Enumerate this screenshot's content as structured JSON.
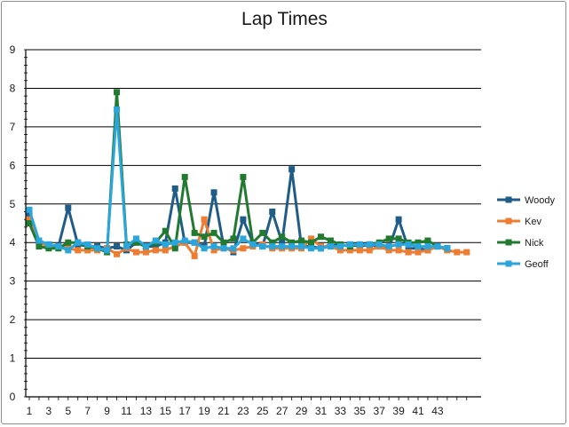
{
  "chart_data": {
    "type": "line",
    "title": "Lap Times",
    "xlabel": "",
    "ylabel": "",
    "ylim": [
      0,
      9
    ],
    "yticks": [
      0,
      1,
      2,
      3,
      4,
      5,
      6,
      7,
      8,
      9
    ],
    "x_tick_labels": [
      1,
      3,
      5,
      7,
      9,
      11,
      13,
      15,
      17,
      19,
      21,
      23,
      25,
      27,
      29,
      31,
      33,
      35,
      37,
      39,
      41,
      43
    ],
    "x_range": [
      1,
      46
    ],
    "grid": "horizontal major",
    "legend_position": "right",
    "series": [
      {
        "name": "Woody",
        "color": "#1F5C88",
        "values": [
          4.7,
          4.0,
          3.95,
          3.9,
          4.9,
          3.95,
          3.9,
          3.9,
          3.85,
          3.9,
          3.8,
          4.0,
          3.9,
          3.9,
          4.0,
          5.4,
          4.0,
          4.0,
          3.9,
          5.3,
          3.9,
          3.75,
          4.6,
          4.0,
          3.9,
          4.8,
          4.0,
          5.9,
          3.9,
          3.9,
          3.85,
          3.95,
          3.9,
          3.95,
          3.9,
          3.95,
          3.9,
          3.85,
          4.6,
          3.85,
          3.85,
          3.8,
          3.9,
          3.85
        ]
      },
      {
        "name": "Kev",
        "color": "#EE7D31",
        "values": [
          4.6,
          4.0,
          3.9,
          3.9,
          3.85,
          3.8,
          3.8,
          3.8,
          3.85,
          3.7,
          3.85,
          3.75,
          3.75,
          3.8,
          3.8,
          3.9,
          4.0,
          3.65,
          4.6,
          3.8,
          3.85,
          3.8,
          3.85,
          3.9,
          3.95,
          3.85,
          3.85,
          3.85,
          3.85,
          4.1,
          3.9,
          3.9,
          3.8,
          3.8,
          3.8,
          3.8,
          3.9,
          3.8,
          3.8,
          3.75,
          3.75,
          3.8,
          3.9,
          3.8,
          3.75,
          3.75
        ]
      },
      {
        "name": "Nick",
        "color": "#217A2F",
        "values": [
          4.5,
          3.9,
          3.85,
          3.85,
          4.0,
          4.0,
          3.9,
          3.85,
          3.75,
          7.9,
          3.95,
          4.0,
          3.9,
          4.0,
          4.3,
          3.85,
          5.7,
          4.25,
          4.15,
          4.25,
          4.0,
          4.1,
          5.7,
          4.0,
          4.25,
          4.0,
          4.15,
          4.0,
          4.05,
          4.0,
          4.15,
          4.05,
          3.95,
          3.9,
          3.95,
          3.95,
          4.0,
          4.1,
          4.1,
          4.0,
          4.0,
          4.05,
          3.9,
          3.85
        ]
      },
      {
        "name": "Geoff",
        "color": "#2AA6DD",
        "values": [
          4.85,
          4.05,
          3.95,
          3.9,
          3.8,
          4.0,
          3.95,
          3.85,
          3.8,
          7.45,
          3.9,
          4.1,
          3.9,
          4.05,
          3.95,
          4.0,
          4.05,
          4.0,
          3.85,
          3.9,
          3.85,
          3.85,
          4.1,
          3.95,
          3.9,
          3.9,
          3.9,
          3.9,
          3.9,
          3.85,
          3.85,
          3.9,
          3.9,
          3.95,
          3.95,
          3.95,
          3.95,
          3.9,
          3.95,
          3.95,
          3.9,
          3.9,
          3.9,
          3.85
        ]
      }
    ]
  }
}
